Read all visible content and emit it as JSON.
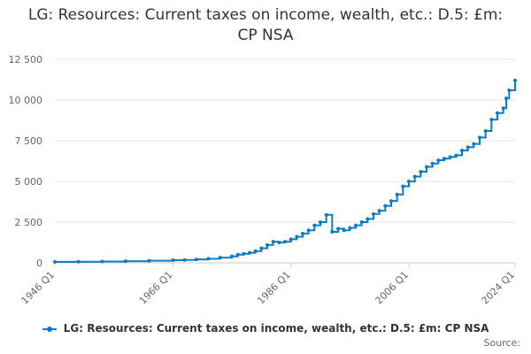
{
  "chart_data": {
    "type": "line",
    "title": "LG: Resources: Current taxes on income, wealth, etc.: D.5: £m: CP NSA",
    "xlabel": "",
    "ylabel": "",
    "x_tick_labels": [
      "1946 Q1",
      "1966 Q1",
      "1986 Q1",
      "2006 Q1",
      "2024 Q1"
    ],
    "y_tick_labels": [
      "0",
      "2 500",
      "5 000",
      "7 500",
      "10 000",
      "12 500"
    ],
    "y_ticks": [
      0,
      2500,
      5000,
      7500,
      10000,
      12500
    ],
    "ylim": [
      0,
      12500
    ],
    "xlim": [
      1946,
      2024
    ],
    "grid": true,
    "legend_position": "bottom",
    "line_color": "#0d7cc0",
    "series": [
      {
        "name": "LG: Resources: Current taxes on income, wealth, etc.: D.5: £m: CP NSA",
        "points": [
          [
            1946,
            60
          ],
          [
            1950,
            70
          ],
          [
            1954,
            80
          ],
          [
            1958,
            100
          ],
          [
            1962,
            130
          ],
          [
            1966,
            160
          ],
          [
            1968,
            180
          ],
          [
            1970,
            210
          ],
          [
            1972,
            250
          ],
          [
            1974,
            320
          ],
          [
            1976,
            400
          ],
          [
            1977,
            500
          ],
          [
            1978,
            560
          ],
          [
            1979,
            620
          ],
          [
            1980,
            720
          ],
          [
            1981,
            900
          ],
          [
            1982,
            1100
          ],
          [
            1983,
            1300
          ],
          [
            1984,
            1250
          ],
          [
            1985,
            1300
          ],
          [
            1986,
            1450
          ],
          [
            1987,
            1600
          ],
          [
            1988,
            1800
          ],
          [
            1989,
            2000
          ],
          [
            1990,
            2300
          ],
          [
            1991,
            2500
          ],
          [
            1992,
            2950
          ],
          [
            1993,
            1900
          ],
          [
            1994,
            2100
          ],
          [
            1995,
            2000
          ],
          [
            1996,
            2150
          ],
          [
            1997,
            2300
          ],
          [
            1998,
            2500
          ],
          [
            1999,
            2700
          ],
          [
            2000,
            3000
          ],
          [
            2001,
            3200
          ],
          [
            2002,
            3500
          ],
          [
            2003,
            3800
          ],
          [
            2004,
            4200
          ],
          [
            2005,
            4700
          ],
          [
            2006,
            5000
          ],
          [
            2007,
            5300
          ],
          [
            2008,
            5600
          ],
          [
            2009,
            5900
          ],
          [
            2010,
            6100
          ],
          [
            2011,
            6300
          ],
          [
            2012,
            6400
          ],
          [
            2013,
            6500
          ],
          [
            2014,
            6600
          ],
          [
            2015,
            6900
          ],
          [
            2016,
            7100
          ],
          [
            2017,
            7300
          ],
          [
            2018,
            7700
          ],
          [
            2019,
            8100
          ],
          [
            2020,
            8800
          ],
          [
            2021,
            9200
          ],
          [
            2022,
            9500
          ],
          [
            2022.5,
            10100
          ],
          [
            2023,
            10600
          ],
          [
            2024,
            11200
          ]
        ]
      }
    ]
  },
  "legend": {
    "label": "LG: Resources: Current taxes on income, wealth, etc.: D.5: £m: CP NSA"
  },
  "source_label": "Source:"
}
